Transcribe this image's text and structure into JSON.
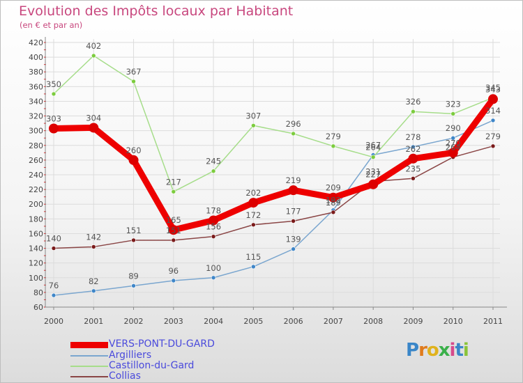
{
  "title": "Evolution des Impôts locaux par Habitant",
  "subtitle": "(en € et par an)",
  "logo": {
    "letters": [
      "P",
      "r",
      "o",
      "x",
      "i",
      "t",
      "i"
    ],
    "colors": [
      "#3a86c8",
      "#e07b1c",
      "#e0b21c",
      "#3ab04a",
      "#d64a8c",
      "#3a86c8",
      "#8ac43a"
    ]
  },
  "chart_data": {
    "type": "line",
    "title": "Evolution des Impôts locaux par Habitant",
    "subtitle": "(en € et par an)",
    "xlabel": "",
    "ylabel": "",
    "ylim": [
      60,
      420
    ],
    "yticks": [
      60,
      80,
      100,
      120,
      140,
      160,
      180,
      200,
      220,
      240,
      260,
      280,
      300,
      320,
      340,
      360,
      380,
      400,
      420
    ],
    "categories": [
      "2000",
      "2001",
      "2002",
      "2003",
      "2004",
      "2005",
      "2006",
      "2007",
      "2008",
      "2009",
      "2010",
      "2011"
    ],
    "grid": true,
    "legend_position": "bottom-left",
    "series": [
      {
        "name": "VERS-PONT-DU-GARD",
        "color": "#ee0000",
        "point_color": "#dd0000",
        "thick": true,
        "values": [
          303,
          304,
          260,
          165,
          178,
          202,
          219,
          209,
          227,
          262,
          270,
          343
        ],
        "labels": [
          "303",
          "304",
          "260",
          "165",
          "178",
          "202",
          "219",
          "209",
          "227",
          "262",
          "270",
          "343"
        ]
      },
      {
        "name": "Argilliers",
        "color": "#7aa6cf",
        "point_color": "#3f86c8",
        "thick": false,
        "values": [
          76,
          82,
          89,
          96,
          100,
          115,
          139,
          192,
          267,
          278,
          290,
          314
        ],
        "labels": [
          "76",
          "82",
          "89",
          "96",
          "100",
          "115",
          "139",
          "192",
          "267",
          "278",
          "290",
          "314"
        ]
      },
      {
        "name": "Castillon-du-Gard",
        "color": "#a6dd8a",
        "point_color": "#7ccc3e",
        "thick": false,
        "values": [
          350,
          402,
          367,
          217,
          245,
          307,
          296,
          279,
          264,
          326,
          323,
          345
        ],
        "labels": [
          "350",
          "402",
          "367",
          "217",
          "245",
          "307",
          "296",
          "279",
          "264",
          "326",
          "323",
          "345"
        ]
      },
      {
        "name": "Collias",
        "color": "#8a4545",
        "point_color": "#7a1a1a",
        "thick": false,
        "values": [
          140,
          142,
          151,
          151,
          156,
          172,
          177,
          189,
          231,
          235,
          264,
          279
        ],
        "labels": [
          "140",
          "142",
          "151",
          "151",
          "156",
          "172",
          "177",
          "189",
          "231",
          "235",
          "264",
          "279"
        ]
      }
    ]
  }
}
